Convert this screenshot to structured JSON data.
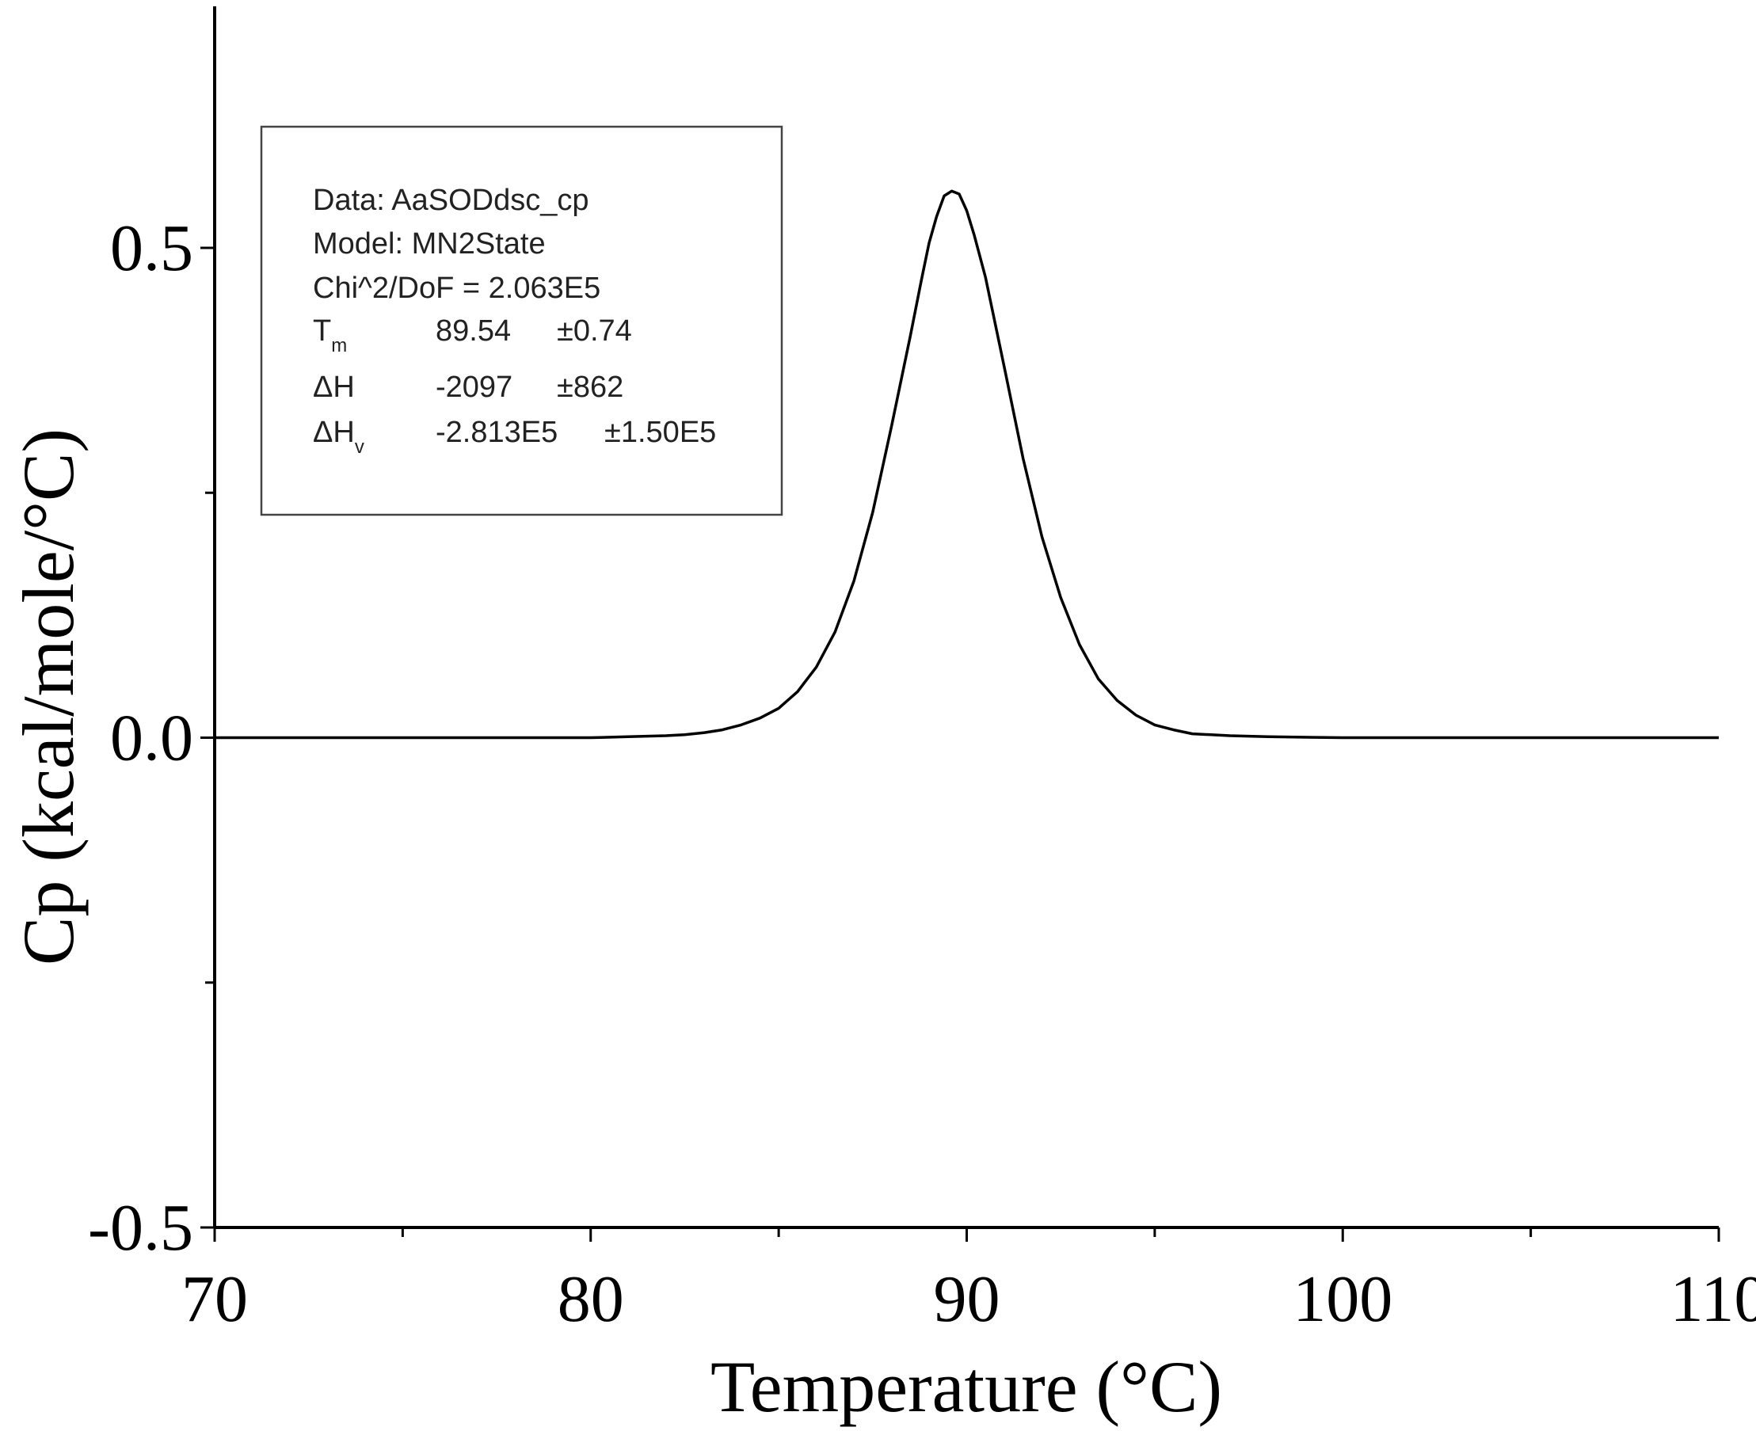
{
  "chart_data": {
    "type": "line",
    "title": "",
    "xlabel": "Temperature (°C)",
    "ylabel": "Cp (kcal/mole/°C)",
    "xlim": [
      70,
      110
    ],
    "ylim": [
      -0.5,
      0.5
    ],
    "x_ticks": [
      70,
      80,
      90,
      100,
      110
    ],
    "x_tick_labels": [
      "70",
      "80",
      "90",
      "100",
      "110"
    ],
    "y_ticks": [
      -0.5,
      0.0,
      0.5
    ],
    "y_tick_labels": [
      "-0.5",
      "0.0",
      "0.5"
    ],
    "grid": false,
    "legend": "none",
    "line_color": "#000000",
    "series": [
      {
        "name": "",
        "x": [
          70,
          72,
          74,
          76,
          78,
          80,
          81,
          82,
          82.5,
          83,
          83.5,
          84,
          84.5,
          85,
          85.5,
          86,
          86.5,
          87,
          87.5,
          88,
          88.5,
          88.8,
          89,
          89.2,
          89.4,
          89.6,
          89.8,
          90,
          90.2,
          90.5,
          91,
          91.5,
          92,
          92.5,
          93,
          93.5,
          94,
          94.5,
          95,
          95.5,
          96,
          97,
          98,
          100,
          105,
          110
        ],
        "y": [
          0,
          0,
          0,
          0,
          0,
          0,
          0.001,
          0.002,
          0.003,
          0.005,
          0.008,
          0.013,
          0.02,
          0.03,
          0.047,
          0.072,
          0.108,
          0.16,
          0.23,
          0.318,
          0.41,
          0.468,
          0.505,
          0.532,
          0.553,
          0.558,
          0.555,
          0.538,
          0.513,
          0.47,
          0.378,
          0.285,
          0.205,
          0.143,
          0.095,
          0.06,
          0.038,
          0.023,
          0.013,
          0.008,
          0.004,
          0.002,
          0.001,
          0,
          0,
          0
        ]
      }
    ],
    "annotation": {
      "data_line": "Data: AaSODdsc_cp",
      "model_line": "Model: MN2State",
      "chi_line": "Chi^2/DoF = 2.063E5",
      "params": [
        {
          "symbol": "T",
          "sub": "m",
          "value": "89.54",
          "error": "±0.74"
        },
        {
          "symbol": "ΔH",
          "sub": "",
          "value": "-2097",
          "error": "±862"
        },
        {
          "symbol": "ΔH",
          "sub": "v",
          "value": "-2.813E5",
          "error": "±1.50E5"
        }
      ]
    }
  }
}
